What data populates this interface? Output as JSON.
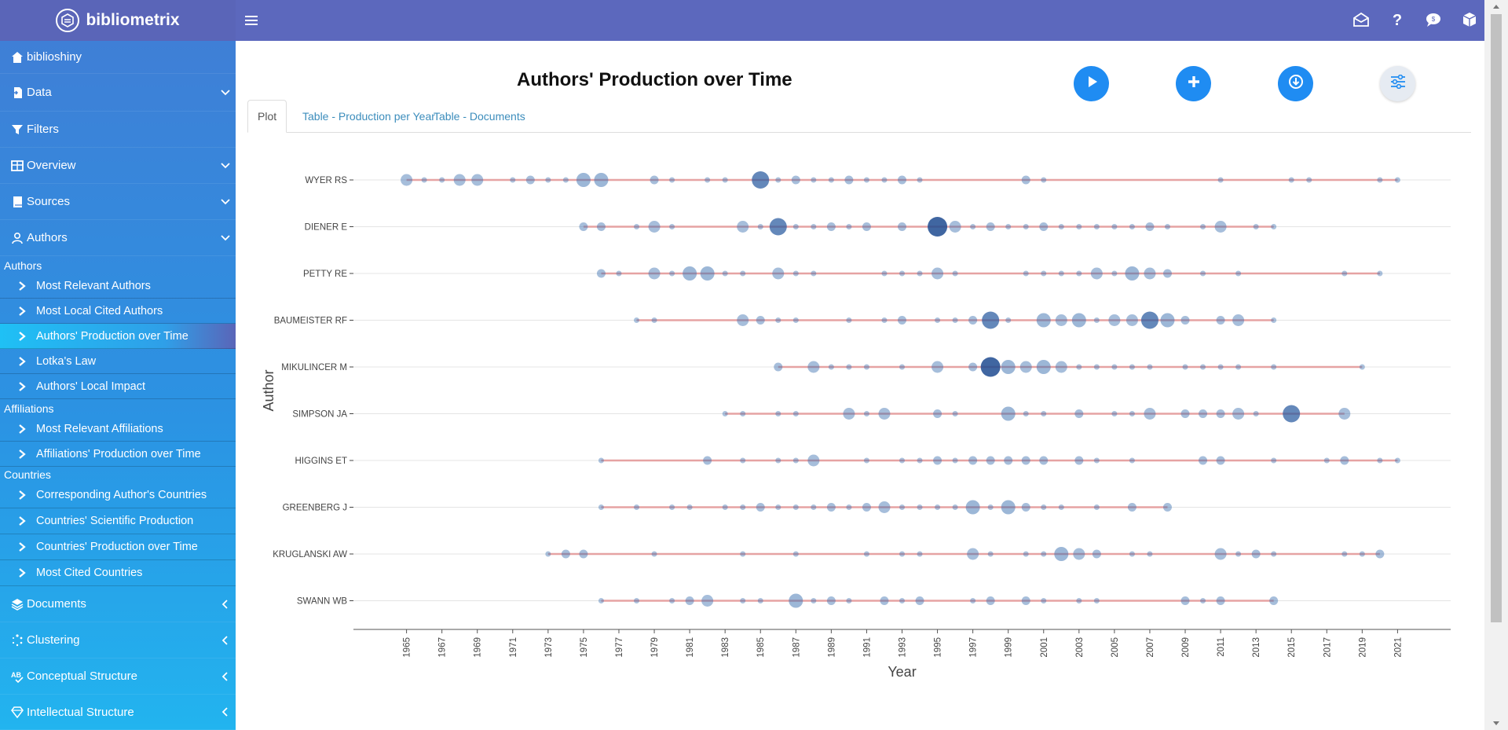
{
  "app": {
    "name": "bibliometrix"
  },
  "sidebar": {
    "top_items": [
      {
        "label": "biblioshiny",
        "icon": "home-icon"
      },
      {
        "label": "Data",
        "icon": "file-import-icon"
      },
      {
        "label": "Filters",
        "icon": "filter-icon"
      },
      {
        "label": "Overview",
        "icon": "table-icon"
      },
      {
        "label": "Sources",
        "icon": "book-icon"
      },
      {
        "label": "Authors",
        "icon": "user-icon"
      }
    ],
    "sections": {
      "authors": "Authors",
      "affiliations": "Affiliations",
      "countries": "Countries"
    },
    "authors_items": [
      "Most Relevant Authors",
      "Most Local Cited Authors",
      "Authors' Production over Time",
      "Lotka's Law",
      "Authors' Local Impact"
    ],
    "affiliations_items": [
      "Most Relevant Affiliations",
      "Affiliations' Production over Time"
    ],
    "countries_items": [
      "Corresponding Author's Countries",
      "Countries' Scientific Production",
      "Countries' Production over Time",
      "Most Cited Countries"
    ],
    "bottom_items": [
      {
        "label": "Documents",
        "icon": "layers-icon"
      },
      {
        "label": "Clustering",
        "icon": "spinner-icon"
      },
      {
        "label": "Conceptual Structure",
        "icon": "spellcheck-icon"
      },
      {
        "label": "Intellectual Structure",
        "icon": "gem-icon"
      }
    ]
  },
  "page": {
    "title": "Authors' Production over Time",
    "tabs": [
      "Plot",
      "Table - Production per Year",
      "Table - Documents"
    ],
    "active_tab": "Plot"
  },
  "colors": {
    "topbar": "#5c68bd",
    "accent_button": "#1f8cf2",
    "timeline_line": "#e6a3a3",
    "bubble": "#3a6fb0"
  },
  "chart_data": {
    "type": "scatter",
    "xlabel": "Year",
    "ylabel": "Author",
    "x_ticks": [
      1965,
      1967,
      1969,
      1971,
      1973,
      1975,
      1977,
      1979,
      1981,
      1983,
      1985,
      1987,
      1989,
      1991,
      1993,
      1995,
      1997,
      1999,
      2001,
      2003,
      2005,
      2007,
      2009,
      2011,
      2013,
      2015,
      2017,
      2019,
      2021
    ],
    "xlim": [
      1962,
      2024
    ],
    "grid": true,
    "series": [
      {
        "name": "WYER RS",
        "start": 1965,
        "end": 2021,
        "points": [
          [
            1965,
            3
          ],
          [
            1966,
            1
          ],
          [
            1967,
            1
          ],
          [
            1968,
            3
          ],
          [
            1969,
            3
          ],
          [
            1971,
            1
          ],
          [
            1972,
            2
          ],
          [
            1973,
            1
          ],
          [
            1974,
            1
          ],
          [
            1975,
            4
          ],
          [
            1976,
            4
          ],
          [
            1979,
            2
          ],
          [
            1980,
            1
          ],
          [
            1982,
            1
          ],
          [
            1983,
            1
          ],
          [
            1985,
            5
          ],
          [
            1986,
            1
          ],
          [
            1987,
            2
          ],
          [
            1988,
            1
          ],
          [
            1989,
            1
          ],
          [
            1990,
            2
          ],
          [
            1991,
            1
          ],
          [
            1992,
            1
          ],
          [
            1993,
            2
          ],
          [
            1994,
            1
          ],
          [
            2000,
            2
          ],
          [
            2001,
            1
          ],
          [
            2011,
            1
          ],
          [
            2015,
            1
          ],
          [
            2016,
            1
          ],
          [
            2020,
            1
          ],
          [
            2021,
            1
          ]
        ]
      },
      {
        "name": "DIENER E",
        "start": 1975,
        "end": 2014,
        "points": [
          [
            1975,
            2
          ],
          [
            1976,
            2
          ],
          [
            1978,
            1
          ],
          [
            1979,
            3
          ],
          [
            1980,
            1
          ],
          [
            1984,
            3
          ],
          [
            1985,
            1
          ],
          [
            1986,
            5
          ],
          [
            1987,
            1
          ],
          [
            1988,
            1
          ],
          [
            1989,
            2
          ],
          [
            1990,
            1
          ],
          [
            1991,
            2
          ],
          [
            1993,
            2
          ],
          [
            1995,
            6
          ],
          [
            1996,
            3
          ],
          [
            1997,
            1
          ],
          [
            1998,
            2
          ],
          [
            1999,
            1
          ],
          [
            2000,
            1
          ],
          [
            2001,
            2
          ],
          [
            2002,
            1
          ],
          [
            2003,
            1
          ],
          [
            2004,
            1
          ],
          [
            2005,
            1
          ],
          [
            2006,
            1
          ],
          [
            2007,
            2
          ],
          [
            2008,
            1
          ],
          [
            2010,
            1
          ],
          [
            2011,
            3
          ],
          [
            2013,
            1
          ],
          [
            2014,
            1
          ]
        ]
      },
      {
        "name": "PETTY RE",
        "start": 1976,
        "end": 2020,
        "points": [
          [
            1976,
            2
          ],
          [
            1977,
            1
          ],
          [
            1979,
            3
          ],
          [
            1980,
            1
          ],
          [
            1981,
            4
          ],
          [
            1982,
            4
          ],
          [
            1983,
            1
          ],
          [
            1984,
            1
          ],
          [
            1986,
            3
          ],
          [
            1987,
            1
          ],
          [
            1988,
            1
          ],
          [
            1992,
            1
          ],
          [
            1993,
            1
          ],
          [
            1994,
            1
          ],
          [
            1995,
            3
          ],
          [
            1996,
            1
          ],
          [
            2000,
            1
          ],
          [
            2001,
            1
          ],
          [
            2002,
            1
          ],
          [
            2003,
            1
          ],
          [
            2004,
            3
          ],
          [
            2005,
            1
          ],
          [
            2006,
            4
          ],
          [
            2007,
            3
          ],
          [
            2008,
            2
          ],
          [
            2010,
            1
          ],
          [
            2012,
            1
          ],
          [
            2018,
            1
          ],
          [
            2020,
            1
          ]
        ]
      },
      {
        "name": "BAUMEISTER RF",
        "start": 1978,
        "end": 2014,
        "points": [
          [
            1978,
            1
          ],
          [
            1979,
            1
          ],
          [
            1984,
            3
          ],
          [
            1985,
            2
          ],
          [
            1986,
            1
          ],
          [
            1987,
            1
          ],
          [
            1990,
            1
          ],
          [
            1992,
            1
          ],
          [
            1993,
            2
          ],
          [
            1995,
            1
          ],
          [
            1996,
            1
          ],
          [
            1997,
            2
          ],
          [
            1998,
            5
          ],
          [
            1999,
            1
          ],
          [
            2001,
            4
          ],
          [
            2002,
            3
          ],
          [
            2003,
            4
          ],
          [
            2004,
            1
          ],
          [
            2005,
            3
          ],
          [
            2006,
            3
          ],
          [
            2007,
            5
          ],
          [
            2008,
            4
          ],
          [
            2009,
            2
          ],
          [
            2011,
            2
          ],
          [
            2012,
            3
          ],
          [
            2014,
            1
          ]
        ]
      },
      {
        "name": "MIKULINCER M",
        "start": 1986,
        "end": 2019,
        "points": [
          [
            1986,
            2
          ],
          [
            1988,
            3
          ],
          [
            1989,
            1
          ],
          [
            1990,
            1
          ],
          [
            1991,
            1
          ],
          [
            1993,
            1
          ],
          [
            1995,
            3
          ],
          [
            1997,
            2
          ],
          [
            1998,
            6
          ],
          [
            1999,
            4
          ],
          [
            2000,
            3
          ],
          [
            2001,
            4
          ],
          [
            2002,
            3
          ],
          [
            2003,
            1
          ],
          [
            2004,
            1
          ],
          [
            2005,
            1
          ],
          [
            2006,
            1
          ],
          [
            2007,
            1
          ],
          [
            2009,
            1
          ],
          [
            2010,
            1
          ],
          [
            2011,
            1
          ],
          [
            2012,
            1
          ],
          [
            2014,
            1
          ],
          [
            2019,
            1
          ]
        ]
      },
      {
        "name": "SIMPSON JA",
        "start": 1983,
        "end": 2018,
        "points": [
          [
            1983,
            1
          ],
          [
            1984,
            1
          ],
          [
            1986,
            1
          ],
          [
            1987,
            1
          ],
          [
            1990,
            3
          ],
          [
            1991,
            1
          ],
          [
            1992,
            3
          ],
          [
            1995,
            2
          ],
          [
            1996,
            1
          ],
          [
            1999,
            4
          ],
          [
            2000,
            1
          ],
          [
            2001,
            1
          ],
          [
            2003,
            2
          ],
          [
            2005,
            1
          ],
          [
            2006,
            1
          ],
          [
            2007,
            3
          ],
          [
            2009,
            2
          ],
          [
            2010,
            2
          ],
          [
            2011,
            2
          ],
          [
            2012,
            3
          ],
          [
            2013,
            1
          ],
          [
            2015,
            5
          ],
          [
            2018,
            3
          ]
        ]
      },
      {
        "name": "HIGGINS ET",
        "start": 1976,
        "end": 2021,
        "points": [
          [
            1976,
            1
          ],
          [
            1982,
            2
          ],
          [
            1984,
            1
          ],
          [
            1986,
            1
          ],
          [
            1987,
            1
          ],
          [
            1988,
            3
          ],
          [
            1991,
            1
          ],
          [
            1993,
            1
          ],
          [
            1994,
            1
          ],
          [
            1995,
            2
          ],
          [
            1996,
            1
          ],
          [
            1997,
            2
          ],
          [
            1998,
            2
          ],
          [
            1999,
            2
          ],
          [
            2000,
            2
          ],
          [
            2001,
            2
          ],
          [
            2003,
            2
          ],
          [
            2004,
            1
          ],
          [
            2006,
            1
          ],
          [
            2010,
            2
          ],
          [
            2011,
            2
          ],
          [
            2014,
            1
          ],
          [
            2017,
            1
          ],
          [
            2018,
            2
          ],
          [
            2020,
            1
          ],
          [
            2021,
            1
          ]
        ]
      },
      {
        "name": "GREENBERG J",
        "start": 1976,
        "end": 2008,
        "points": [
          [
            1976,
            1
          ],
          [
            1978,
            1
          ],
          [
            1980,
            1
          ],
          [
            1981,
            1
          ],
          [
            1983,
            1
          ],
          [
            1984,
            1
          ],
          [
            1985,
            2
          ],
          [
            1986,
            1
          ],
          [
            1987,
            1
          ],
          [
            1988,
            1
          ],
          [
            1989,
            2
          ],
          [
            1990,
            1
          ],
          [
            1991,
            2
          ],
          [
            1992,
            3
          ],
          [
            1993,
            1
          ],
          [
            1994,
            1
          ],
          [
            1995,
            1
          ],
          [
            1996,
            1
          ],
          [
            1997,
            4
          ],
          [
            1998,
            1
          ],
          [
            1999,
            4
          ],
          [
            2000,
            2
          ],
          [
            2001,
            1
          ],
          [
            2002,
            1
          ],
          [
            2004,
            1
          ],
          [
            2006,
            2
          ],
          [
            2008,
            2
          ]
        ]
      },
      {
        "name": "KRUGLANSKI AW",
        "start": 1973,
        "end": 2020,
        "points": [
          [
            1973,
            1
          ],
          [
            1974,
            2
          ],
          [
            1975,
            2
          ],
          [
            1979,
            1
          ],
          [
            1984,
            1
          ],
          [
            1987,
            1
          ],
          [
            1991,
            1
          ],
          [
            1993,
            1
          ],
          [
            1994,
            1
          ],
          [
            1997,
            3
          ],
          [
            1998,
            1
          ],
          [
            2000,
            1
          ],
          [
            2001,
            1
          ],
          [
            2002,
            4
          ],
          [
            2003,
            3
          ],
          [
            2004,
            2
          ],
          [
            2006,
            1
          ],
          [
            2007,
            1
          ],
          [
            2011,
            3
          ],
          [
            2012,
            1
          ],
          [
            2013,
            2
          ],
          [
            2014,
            1
          ],
          [
            2018,
            1
          ],
          [
            2019,
            1
          ],
          [
            2020,
            2
          ]
        ]
      },
      {
        "name": "SWANN WB",
        "start": 1976,
        "end": 2014,
        "points": [
          [
            1976,
            1
          ],
          [
            1978,
            1
          ],
          [
            1980,
            1
          ],
          [
            1981,
            2
          ],
          [
            1982,
            3
          ],
          [
            1984,
            1
          ],
          [
            1985,
            1
          ],
          [
            1987,
            4
          ],
          [
            1988,
            1
          ],
          [
            1989,
            2
          ],
          [
            1990,
            1
          ],
          [
            1992,
            2
          ],
          [
            1993,
            1
          ],
          [
            1994,
            2
          ],
          [
            1997,
            1
          ],
          [
            1998,
            2
          ],
          [
            2000,
            2
          ],
          [
            2001,
            1
          ],
          [
            2003,
            1
          ],
          [
            2004,
            1
          ],
          [
            2009,
            2
          ],
          [
            2010,
            1
          ],
          [
            2011,
            2
          ],
          [
            2014,
            2
          ]
        ]
      }
    ]
  }
}
